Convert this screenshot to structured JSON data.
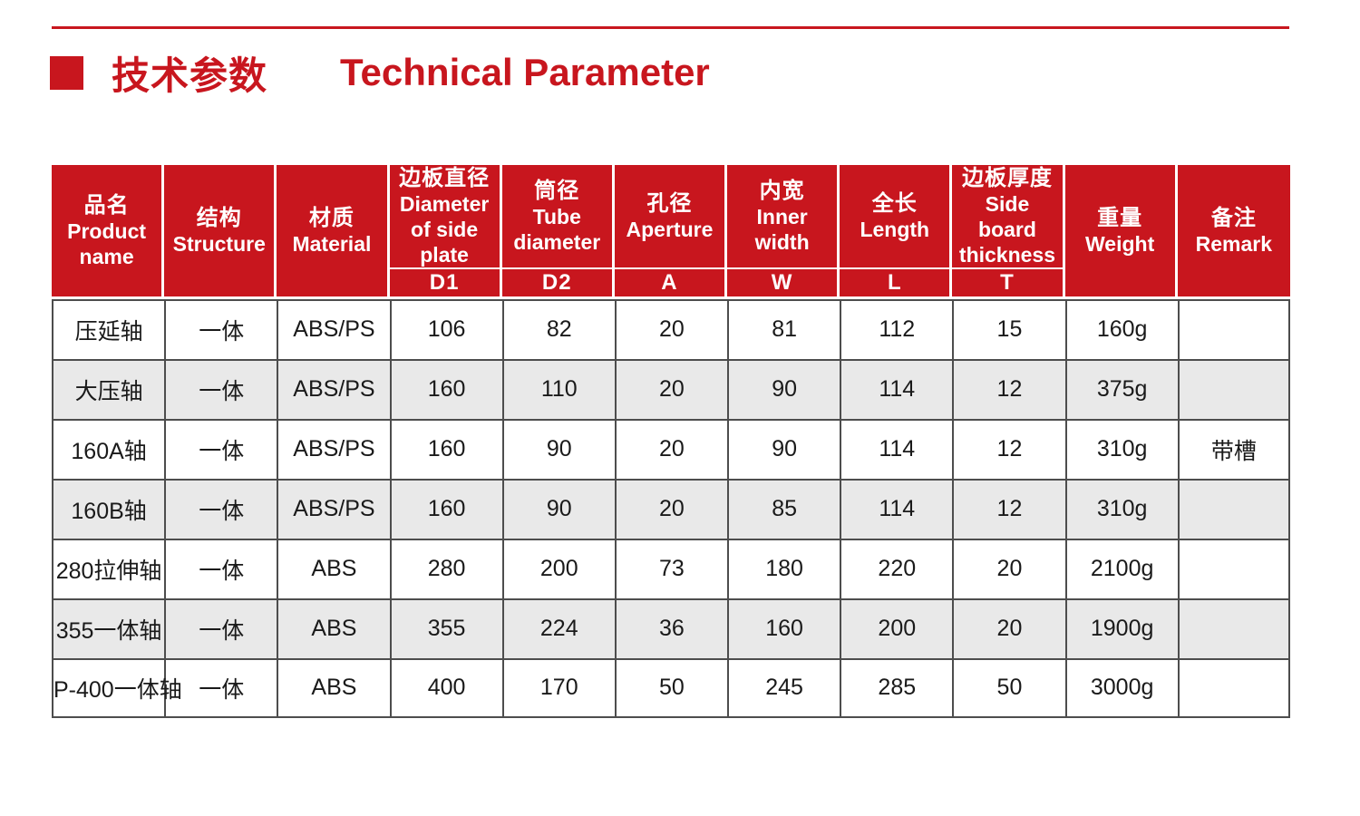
{
  "header": {
    "title_cn": "技术参数",
    "title_en": "Technical Parameter"
  },
  "colors": {
    "accent_red": "#c8161e",
    "header_text": "#ffffff",
    "table_border": "#4d4d4d",
    "row_alt_bg": "#e9e9e9",
    "body_text": "#1a1a1a"
  },
  "table": {
    "columns": [
      {
        "key": "product-name",
        "cn": "品名",
        "en": "Product name",
        "sub": null
      },
      {
        "key": "structure",
        "cn": "结构",
        "en": "Structure",
        "sub": null
      },
      {
        "key": "material",
        "cn": "材质",
        "en": "Material",
        "sub": null
      },
      {
        "key": "side-plate-diameter",
        "cn": "边板直径",
        "en": "Diameter of side plate",
        "sub": "D1"
      },
      {
        "key": "tube-diameter",
        "cn": "筒径",
        "en": "Tube diameter",
        "sub": "D2"
      },
      {
        "key": "aperture",
        "cn": "孔径",
        "en": "Aperture",
        "sub": "A"
      },
      {
        "key": "inner-width",
        "cn": "内宽",
        "en": "Inner width",
        "sub": "W"
      },
      {
        "key": "length",
        "cn": "全长",
        "en": "Length",
        "sub": "L"
      },
      {
        "key": "side-board-thickness",
        "cn": "边板厚度",
        "en": "Side board thickness",
        "sub": "T"
      },
      {
        "key": "weight",
        "cn": "重量",
        "en": "Weight",
        "sub": null
      },
      {
        "key": "remark",
        "cn": "备注",
        "en": "Remark",
        "sub": null
      }
    ],
    "rows": [
      [
        "压延轴",
        "一体",
        "ABS/PS",
        "106",
        "82",
        "20",
        "81",
        "112",
        "15",
        "160g",
        ""
      ],
      [
        "大压轴",
        "一体",
        "ABS/PS",
        "160",
        "110",
        "20",
        "90",
        "114",
        "12",
        "375g",
        ""
      ],
      [
        "160A轴",
        "一体",
        "ABS/PS",
        "160",
        "90",
        "20",
        "90",
        "114",
        "12",
        "310g",
        "带槽"
      ],
      [
        "160B轴",
        "一体",
        "ABS/PS",
        "160",
        "90",
        "20",
        "85",
        "114",
        "12",
        "310g",
        ""
      ],
      [
        "280拉伸轴",
        "一体",
        "ABS",
        "280",
        "200",
        "73",
        "180",
        "220",
        "20",
        "2100g",
        ""
      ],
      [
        "355一体轴",
        "一体",
        "ABS",
        "355",
        "224",
        "36",
        "160",
        "200",
        "20",
        "1900g",
        ""
      ],
      [
        "P-400一体轴",
        "一体",
        "ABS",
        "400",
        "170",
        "50",
        "245",
        "285",
        "50",
        "3000g",
        ""
      ]
    ]
  }
}
